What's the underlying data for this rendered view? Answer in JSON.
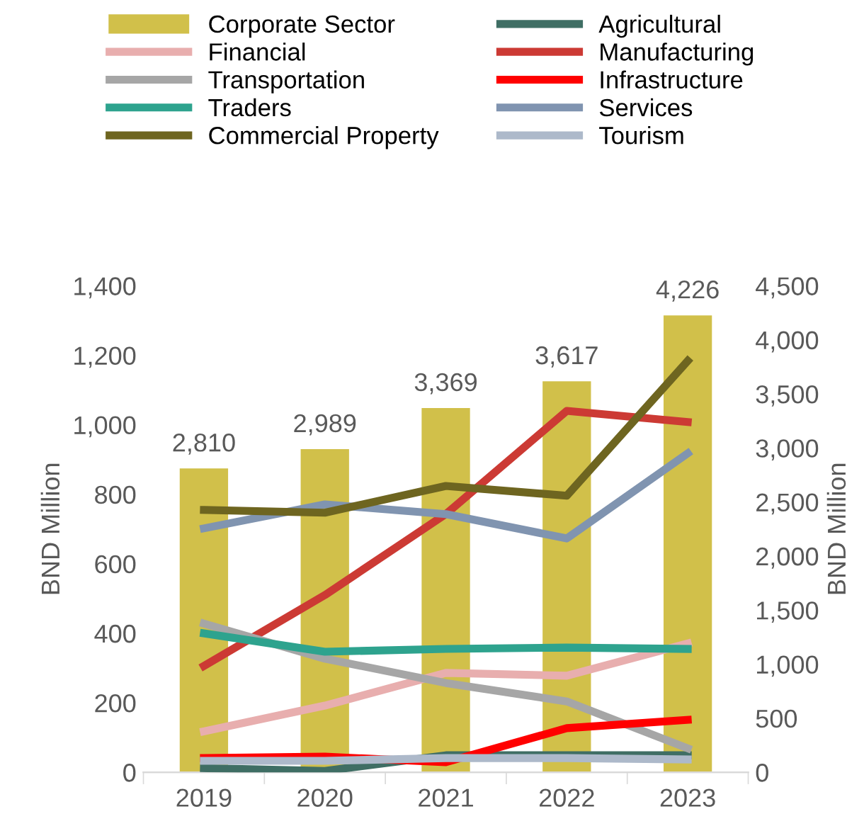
{
  "chart_data": {
    "type": "line",
    "categories": [
      "2019",
      "2020",
      "2021",
      "2022",
      "2023"
    ],
    "ylabel": "BND Million",
    "y2label": "BND Million",
    "ylim": [
      0,
      1400
    ],
    "yticks": [
      0,
      {
        "value": 200,
        "label": "200"
      },
      {
        "value": 400,
        "label": "400"
      },
      {
        "value": 600,
        "label": "600"
      },
      {
        "value": 800,
        "label": "800"
      },
      {
        "value": 1000,
        "label": "1,000"
      },
      {
        "value": 1200,
        "label": "1,200"
      },
      {
        "value": 1400,
        "label": "1,400"
      }
    ],
    "y2lim": [
      0,
      4500
    ],
    "y2ticks": [
      0,
      500,
      {
        "value": 1000,
        "label": "1,000"
      },
      {
        "value": 1500,
        "label": "1,500"
      },
      {
        "value": 2000,
        "label": "2,000"
      },
      {
        "value": 2500,
        "label": "2,500"
      },
      {
        "value": 3000,
        "label": "3,000"
      },
      {
        "value": 3500,
        "label": "3,500"
      },
      {
        "value": 4000,
        "label": "4,000"
      },
      {
        "value": 4500,
        "label": "4,500"
      }
    ],
    "grid": false,
    "legend": "top",
    "series": [
      {
        "name": "Corporate Sector",
        "type": "bar",
        "axis": "y2",
        "color": "#d1c04a",
        "values": [
          2810,
          2989,
          3369,
          3617,
          4226
        ],
        "value_labels": [
          "2,810",
          "2,989",
          "3,369",
          "3,617",
          "4,226"
        ]
      },
      {
        "name": "Agricultural",
        "color": "#3f6e64",
        "values": [
          12,
          4,
          49,
          49,
          49
        ]
      },
      {
        "name": "Financial",
        "color": "#e8aeae",
        "values": [
          118,
          192,
          286,
          278,
          371
        ]
      },
      {
        "name": "Manufacturing",
        "color": "#cc3a34",
        "values": [
          306,
          510,
          743,
          1040,
          1008
        ]
      },
      {
        "name": "Transportation",
        "color": "#a6a6a6",
        "values": [
          428,
          327,
          257,
          204,
          69
        ]
      },
      {
        "name": "Infrastructure",
        "color": "#ff0000",
        "values": [
          41,
          45,
          29,
          127,
          151
        ]
      },
      {
        "name": "Traders",
        "color": "#2ea38e",
        "values": [
          400,
          347,
          355,
          359,
          355
        ]
      },
      {
        "name": "Services",
        "color": "#8094b0",
        "values": [
          702,
          771,
          743,
          673,
          918
        ]
      },
      {
        "name": "Commercial Property",
        "color": "#6e6520",
        "values": [
          755,
          747,
          824,
          796,
          1184
        ]
      },
      {
        "name": "Tourism",
        "color": "#adb9ca",
        "values": [
          33,
          33,
          41,
          41,
          37
        ]
      }
    ]
  }
}
